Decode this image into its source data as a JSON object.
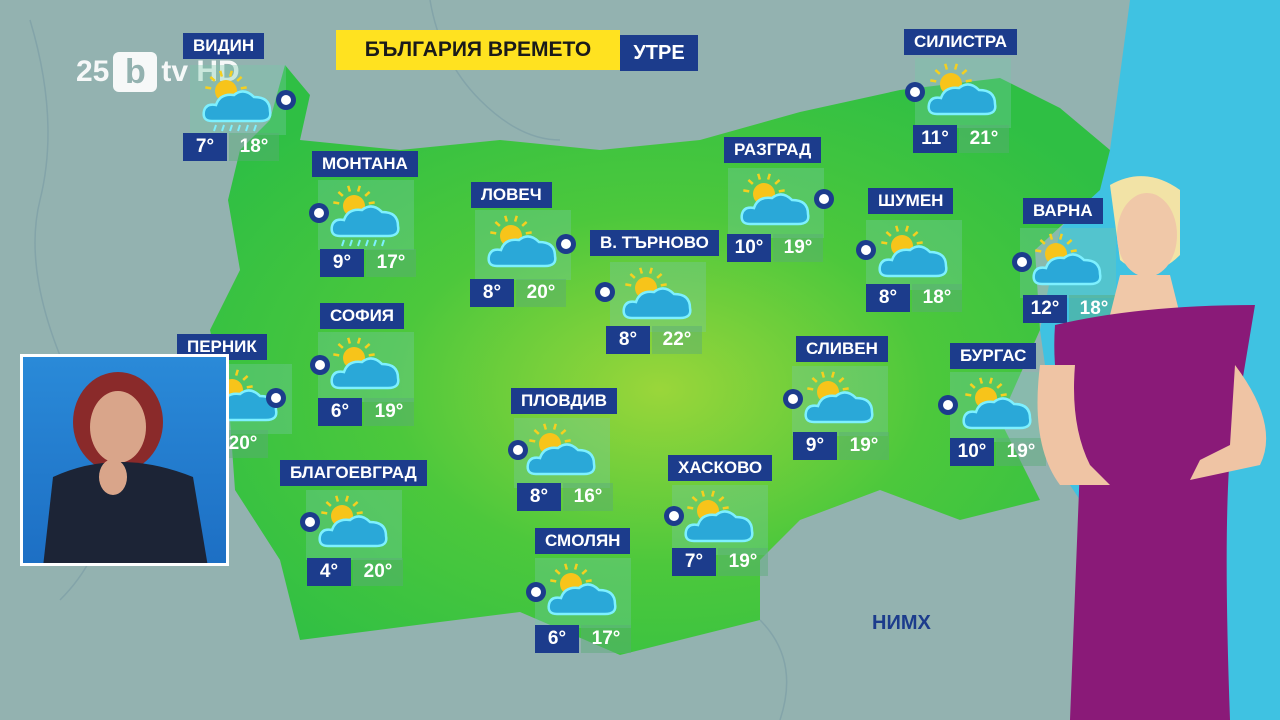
{
  "header": {
    "title": "БЪЛГАРИЯ ВРЕМЕТО",
    "period": "УТРЕ"
  },
  "logo": {
    "anniversary": "25",
    "brand": "b",
    "channel": "tv HD"
  },
  "source_label": "НИМХ",
  "colors": {
    "label_bg": "#1c3c8c",
    "title_bg": "#ffe220",
    "land": "#3cc43c",
    "sea": "#3fc2e2"
  },
  "cities": [
    {
      "name": "ВИДИН",
      "icon": "sun-cloud-rain-icon",
      "low": "7°",
      "high": "18°"
    },
    {
      "name": "МОНТАНА",
      "icon": "sun-cloud-rain-icon",
      "low": "9°",
      "high": "17°"
    },
    {
      "name": "ЛОВЕЧ",
      "icon": "sun-cloud-icon",
      "low": "8°",
      "high": "20°"
    },
    {
      "name": "В. ТЪРНОВО",
      "icon": "sun-cloud-icon",
      "low": "8°",
      "high": "22°"
    },
    {
      "name": "РАЗГРАД",
      "icon": "sun-cloud-icon",
      "low": "10°",
      "high": "19°"
    },
    {
      "name": "ШУМЕН",
      "icon": "sun-cloud-icon",
      "low": "8°",
      "high": "18°"
    },
    {
      "name": "ВАРНА",
      "icon": "sun-cloud-icon",
      "low": "12°",
      "high": "18°"
    },
    {
      "name": "СИЛИСТРА",
      "icon": "sun-cloud-icon",
      "low": "11°",
      "high": "21°"
    },
    {
      "name": "СОФИЯ",
      "icon": "sun-cloud-icon",
      "low": "6°",
      "high": "19°"
    },
    {
      "name": "ПЕРНИК",
      "icon": "sun-cloud-icon",
      "low": "",
      "high": "20°"
    },
    {
      "name": "БЛАГОЕВГРАД",
      "icon": "sun-cloud-icon",
      "low": "4°",
      "high": "20°"
    },
    {
      "name": "ПЛОВДИВ",
      "icon": "sun-cloud-icon",
      "low": "8°",
      "high": "16°"
    },
    {
      "name": "ХАСКОВО",
      "icon": "sun-cloud-icon",
      "low": "7°",
      "high": "19°"
    },
    {
      "name": "СЛИВЕН",
      "icon": "sun-cloud-icon",
      "low": "9°",
      "high": "19°"
    },
    {
      "name": "БУРГАС",
      "icon": "sun-cloud-icon",
      "low": "10°",
      "high": "19°"
    },
    {
      "name": "СМОЛЯН",
      "icon": "sun-cloud-icon",
      "low": "6°",
      "high": "17°"
    }
  ]
}
